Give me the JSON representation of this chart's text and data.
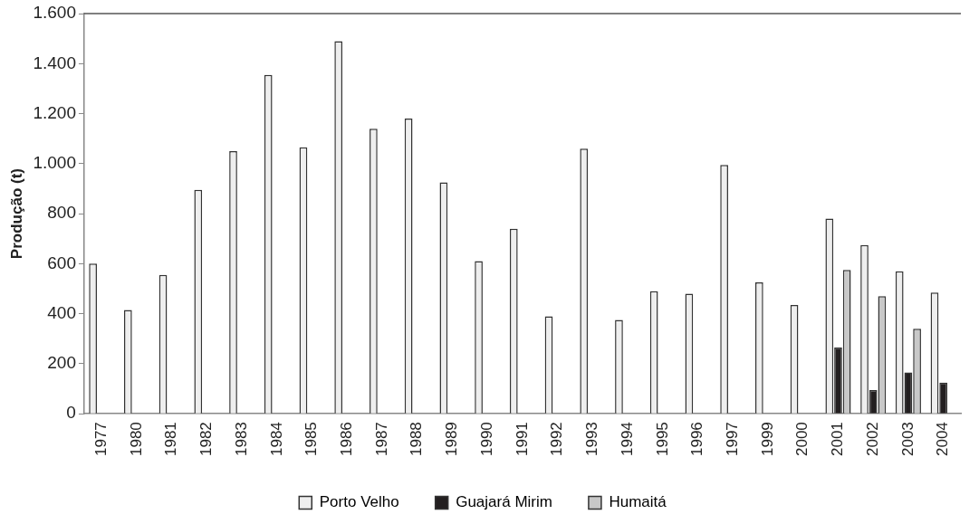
{
  "chart_data": {
    "type": "bar",
    "ylabel": "Produção (t)",
    "categories": [
      "1977",
      "1980",
      "1981",
      "1982",
      "1983",
      "1984",
      "1985",
      "1986",
      "1987",
      "1988",
      "1989",
      "1990",
      "1991",
      "1992",
      "1993",
      "1994",
      "1995",
      "1996",
      "1997",
      "1999",
      "2000",
      "2001",
      "2002",
      "2003",
      "2004"
    ],
    "series": [
      {
        "name": "Porto Velho",
        "color": "#eeeeee",
        "values": [
          600,
          415,
          555,
          895,
          1050,
          1355,
          1065,
          1490,
          1140,
          1180,
          925,
          610,
          740,
          390,
          1060,
          375,
          490,
          480,
          995,
          525,
          435,
          780,
          675,
          570,
          485
        ]
      },
      {
        "name": "Guajará Mirim",
        "color": "#231f20",
        "values": [
          null,
          null,
          null,
          null,
          null,
          null,
          null,
          null,
          null,
          null,
          null,
          null,
          null,
          null,
          null,
          null,
          null,
          null,
          null,
          null,
          null,
          265,
          95,
          165,
          125
        ]
      },
      {
        "name": "Humaitá",
        "color": "#c8c8c8",
        "values": [
          null,
          null,
          null,
          null,
          null,
          null,
          null,
          null,
          null,
          null,
          null,
          null,
          null,
          null,
          null,
          null,
          null,
          null,
          null,
          null,
          null,
          575,
          470,
          340,
          null
        ]
      }
    ],
    "ylim": [
      0,
      1600
    ],
    "yticks": [
      0,
      200,
      400,
      600,
      800,
      {
        "value": 1000,
        "label": "1.000"
      },
      {
        "value": 1200,
        "label": "1.200"
      },
      {
        "value": 1400,
        "label": "1.400"
      },
      {
        "value": 1600,
        "label": "1.600"
      }
    ],
    "grid": false,
    "legend": "bottom"
  }
}
